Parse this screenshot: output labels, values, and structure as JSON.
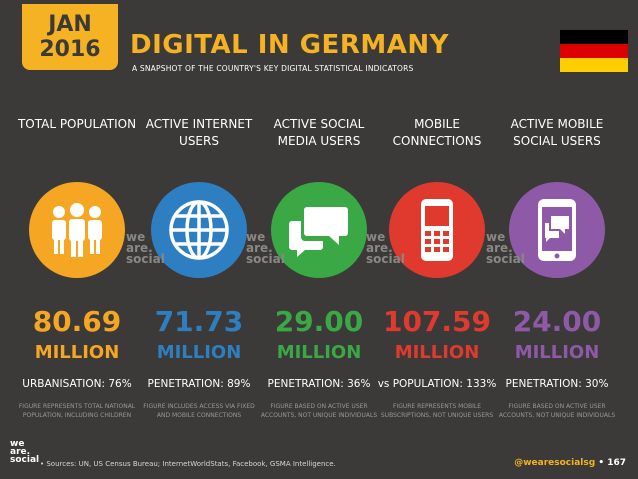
{
  "header": {
    "month": "JAN",
    "year": "2016",
    "title": "DIGITAL IN GERMANY",
    "subtitle": "A SNAPSHOT OF THE COUNTRY'S KEY DIGITAL STATISTICAL INDICATORS"
  },
  "flag": {
    "colors": [
      "#000000",
      "#dd0000",
      "#ffce00"
    ]
  },
  "columns": [
    {
      "label": "TOTAL POPULATION",
      "icon": "people-icon",
      "color": "#f5a623",
      "value": "80.69",
      "unit": "MILLION",
      "stat": "URBANISATION: 76%",
      "note": "FIGURE REPRESENTS TOTAL NATIONAL POPULATION, INCLUDING CHILDREN"
    },
    {
      "label": "ACTIVE INTERNET USERS",
      "icon": "globe-icon",
      "color": "#2e7fc1",
      "value": "71.73",
      "unit": "MILLION",
      "stat": "PENETRATION: 89%",
      "note": "FIGURE INCLUDES ACCESS VIA FIXED AND MOBILE CONNECTIONS"
    },
    {
      "label": "ACTIVE SOCIAL MEDIA USERS",
      "icon": "chat-bubbles-icon",
      "color": "#3aa845",
      "value": "29.00",
      "unit": "MILLION",
      "stat": "PENETRATION: 36%",
      "note": "FIGURE BASED ON ACTIVE USER ACCOUNTS, NOT UNIQUE INDIVIDUALS"
    },
    {
      "label": "MOBILE CONNECTIONS",
      "icon": "mobile-phone-icon",
      "color": "#e03a2f",
      "value": "107.59",
      "unit": "MILLION",
      "stat": "vs POPULATION: 133%",
      "note": "FIGURE REPRESENTS MOBILE SUBSCRIPTIONS, NOT UNIQUE USERS"
    },
    {
      "label": "ACTIVE MOBILE SOCIAL USERS",
      "icon": "smartphone-chat-icon",
      "color": "#8e5aa8",
      "value": "24.00",
      "unit": "MILLION",
      "stat": "PENETRATION: 30%",
      "note": "FIGURE BASED ON ACTIVE USER ACCOUNTS, NOT UNIQUE INDIVIDUALS"
    }
  ],
  "watermark": {
    "line1": "we",
    "line2": "are.",
    "line3": "social"
  },
  "footer": {
    "logo1": "we",
    "logo2": "are.",
    "logo3": "social",
    "sources": "• Sources: UN, US Census Bureau; InternetWorldStats, Facebook, GSMA Intelligence.",
    "handle": "@wearesocialsg",
    "page": "• 167"
  }
}
